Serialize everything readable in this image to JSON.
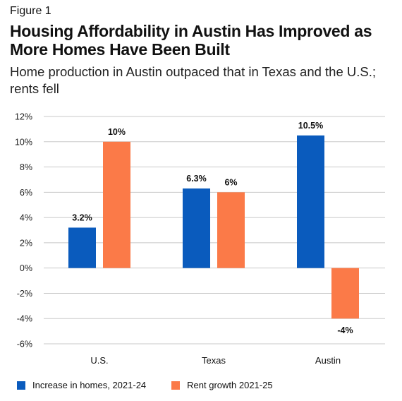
{
  "figure_label": "Figure 1",
  "title": "Housing Affordability in Austin Has Improved as More Homes Have Been Built",
  "subtitle": "Home production in Austin outpaced that in Texas and the U.S.; rents fell",
  "colors": {
    "homes": "#0a5bbd",
    "rent": "#fb7a48",
    "grid": "#c8c8c8"
  },
  "chart_data": {
    "type": "bar",
    "categories": [
      "U.S.",
      "Texas",
      "Austin"
    ],
    "series": [
      {
        "name": "Increase in homes, 2021-24",
        "values": [
          3.2,
          6.3,
          10.5
        ],
        "labels": [
          "3.2%",
          "6.3%",
          "10.5%"
        ]
      },
      {
        "name": "Rent growth 2021-25",
        "values": [
          10,
          6,
          -4
        ],
        "labels": [
          "10%",
          "6%",
          "-4%"
        ]
      }
    ],
    "ylim": [
      -6,
      12
    ],
    "yticks": [
      "-6%",
      "-4%",
      "-2%",
      "0%",
      "2%",
      "4%",
      "6%",
      "8%",
      "10%",
      "12%"
    ],
    "ytick_values": [
      -6,
      -4,
      -2,
      0,
      2,
      4,
      6,
      8,
      10,
      12
    ],
    "grid": true,
    "legend_position": "bottom-left"
  }
}
